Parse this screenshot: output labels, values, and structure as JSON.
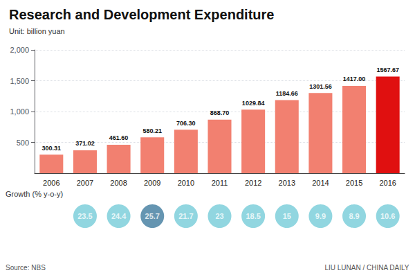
{
  "chart_data": {
    "type": "bar",
    "title": "Research and Development Expenditure",
    "subtitle": "Unit: billion yuan",
    "categories": [
      "2006",
      "2007",
      "2008",
      "2009",
      "2010",
      "2011",
      "2012",
      "2013",
      "2014",
      "2015",
      "2016"
    ],
    "values": [
      300.31,
      371.02,
      461.6,
      580.21,
      706.3,
      868.7,
      1029.84,
      1184.66,
      1301.56,
      1417.0,
      1567.67
    ],
    "value_labels": [
      "300.31",
      "371.02",
      "461.60",
      "580.21",
      "706.30",
      "868.70",
      "1029.84",
      "1184.66",
      "1301.56",
      "1417.00",
      "1567.67"
    ],
    "data_labels": true,
    "colors": [
      "#f28070",
      "#f28070",
      "#f28070",
      "#f28070",
      "#f28070",
      "#f28070",
      "#f28070",
      "#f28070",
      "#f28070",
      "#f28070",
      "#e01010"
    ],
    "ylim": [
      0,
      2000
    ],
    "yticks": [
      500,
      {
        "value": 1000,
        "label": "1,000"
      },
      {
        "value": 1500,
        "label": "1,500"
      },
      {
        "value": 2000,
        "label": "2,000"
      }
    ],
    "grid": true,
    "growth_label": "Growth (% y-o-y)",
    "growth_values": [
      null,
      23.5,
      24.4,
      25.7,
      21.7,
      23.0,
      18.5,
      15.0,
      9.9,
      8.9,
      10.6
    ],
    "growth_colors": [
      null,
      "#76ccd8",
      "#76ccd8",
      "#3e7a9e",
      "#76ccd8",
      "#76ccd8",
      "#76ccd8",
      "#76ccd8",
      "#76ccd8",
      "#76ccd8",
      "#76ccd8"
    ],
    "source": "Source: NBS",
    "credit": "LIU LUNAN / CHINA DAILY"
  }
}
